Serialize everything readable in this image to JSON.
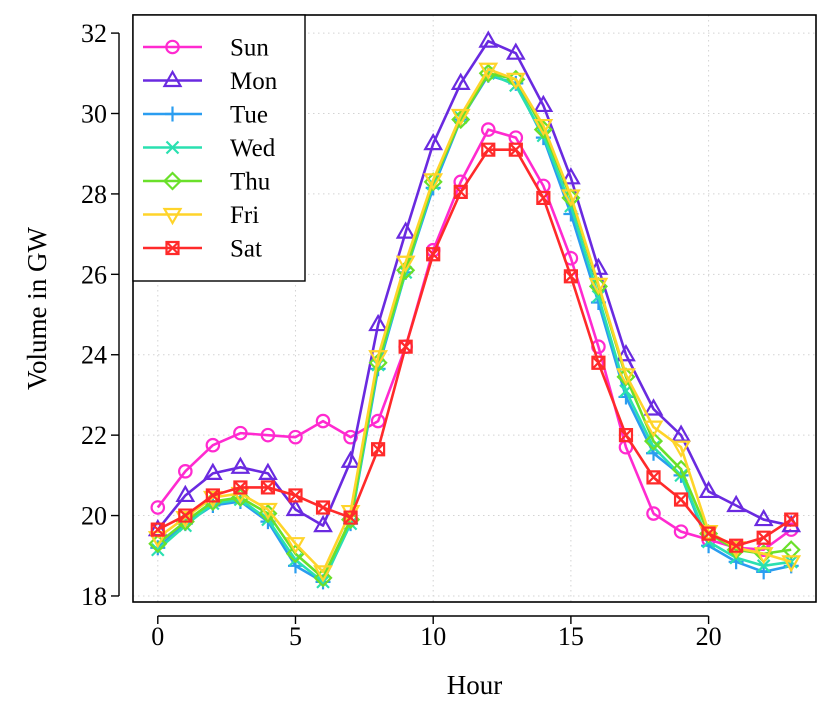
{
  "chart_data": {
    "type": "line",
    "title": "",
    "xlabel": "Hour",
    "ylabel": "Volume in GW",
    "xlim": [
      -0.9,
      23.9
    ],
    "ylim": [
      17.85,
      32.45
    ],
    "xticks": [
      0,
      5,
      10,
      15,
      20
    ],
    "yticks": [
      18,
      20,
      22,
      24,
      26,
      28,
      30,
      32
    ],
    "grid": true,
    "legend_position": "top-left",
    "x": [
      0,
      1,
      2,
      3,
      4,
      5,
      6,
      7,
      8,
      9,
      10,
      11,
      12,
      13,
      14,
      15,
      16,
      17,
      18,
      19,
      20,
      21,
      22,
      23
    ],
    "series": [
      {
        "name": "Sun",
        "color": "#ff2ad0",
        "marker": "circle",
        "values": [
          20.2,
          21.1,
          21.75,
          22.05,
          22.0,
          21.95,
          22.35,
          21.95,
          22.35,
          24.2,
          26.6,
          28.3,
          29.6,
          29.4,
          28.2,
          26.4,
          24.2,
          21.7,
          20.05,
          19.6,
          19.4,
          19.2,
          19.15,
          19.65
        ]
      },
      {
        "name": "Mon",
        "color": "#6a2ae0",
        "marker": "triangle-up",
        "values": [
          19.65,
          20.5,
          21.05,
          21.2,
          21.05,
          20.15,
          19.75,
          21.35,
          24.75,
          27.05,
          29.25,
          30.75,
          31.8,
          31.5,
          30.2,
          28.4,
          26.15,
          24.0,
          22.65,
          22.0,
          20.6,
          20.25,
          19.9,
          19.75
        ]
      },
      {
        "name": "Tue",
        "color": "#2a9df0",
        "marker": "plus",
        "values": [
          19.2,
          19.8,
          20.25,
          20.35,
          19.85,
          18.75,
          18.35,
          19.8,
          23.65,
          26.05,
          28.15,
          29.85,
          30.95,
          30.75,
          29.4,
          27.5,
          25.3,
          22.95,
          21.55,
          21.0,
          19.25,
          18.85,
          18.6,
          18.75
        ]
      },
      {
        "name": "Wed",
        "color": "#2ae0b0",
        "marker": "x",
        "values": [
          19.15,
          19.75,
          20.3,
          20.4,
          19.9,
          18.9,
          18.35,
          19.8,
          23.75,
          26.05,
          28.25,
          29.9,
          31.0,
          30.7,
          29.45,
          27.7,
          25.45,
          23.1,
          21.7,
          21.0,
          19.35,
          18.95,
          18.75,
          18.85
        ]
      },
      {
        "name": "Thu",
        "color": "#6ae02a",
        "marker": "diamond",
        "values": [
          19.3,
          19.85,
          20.35,
          20.45,
          20.05,
          19.05,
          18.45,
          19.9,
          23.8,
          26.1,
          28.3,
          29.85,
          31.0,
          30.85,
          29.6,
          27.9,
          25.7,
          23.45,
          21.85,
          21.15,
          19.55,
          19.15,
          19.05,
          19.15
        ]
      },
      {
        "name": "Fri",
        "color": "#ffd42a",
        "marker": "triangle-down",
        "values": [
          19.45,
          19.95,
          20.45,
          20.55,
          20.15,
          19.3,
          18.6,
          20.1,
          23.95,
          26.3,
          28.35,
          29.95,
          31.1,
          30.85,
          29.7,
          27.95,
          25.75,
          23.5,
          22.2,
          21.7,
          19.6,
          19.2,
          19.05,
          18.85
        ]
      },
      {
        "name": "Sat",
        "color": "#ff2a2a",
        "marker": "square-x",
        "values": [
          19.65,
          20.0,
          20.5,
          20.7,
          20.7,
          20.5,
          20.2,
          19.95,
          21.65,
          24.2,
          26.5,
          28.05,
          29.1,
          29.1,
          27.9,
          25.95,
          23.8,
          22.0,
          20.95,
          20.4,
          19.55,
          19.25,
          19.45,
          19.9
        ]
      }
    ]
  }
}
